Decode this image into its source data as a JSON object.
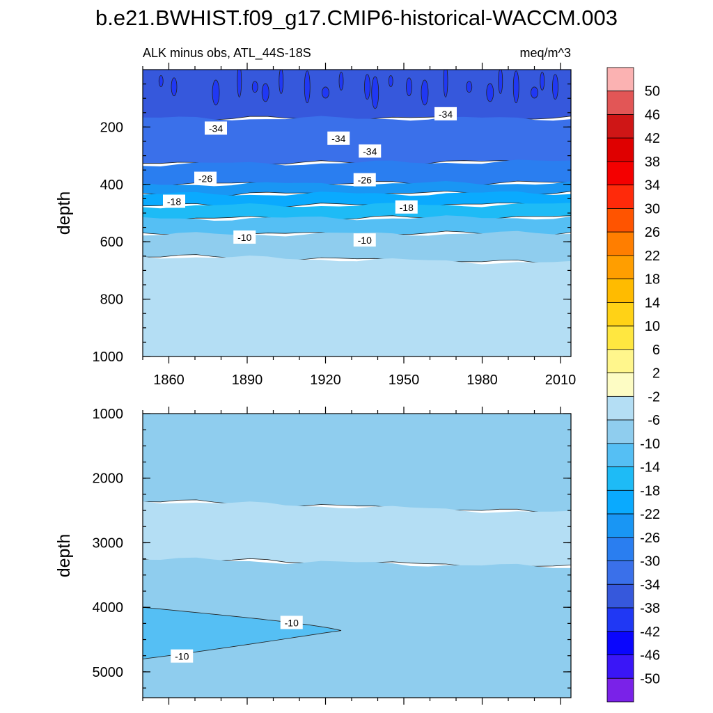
{
  "figure_title": "b.e21.BWHIST.f09_g17.CMIP6-historical-WACCM.003",
  "colorbar": {
    "levels": [
      "50",
      "46",
      "42",
      "38",
      "34",
      "30",
      "26",
      "22",
      "18",
      "14",
      "10",
      "6",
      "2",
      "-2",
      "-6",
      "-10",
      "-14",
      "-18",
      "-22",
      "-26",
      "-30",
      "-34",
      "-38",
      "-42",
      "-46",
      "-50"
    ],
    "colors": [
      "#fbb2b2",
      "#e25656",
      "#cf1616",
      "#df0000",
      "#f40000",
      "#ff2a0a",
      "#ff5400",
      "#ff7e00",
      "#ff9e00",
      "#ffbb00",
      "#ffd216",
      "#ffe740",
      "#fff68c",
      "#fdfcc4",
      "#b4def4",
      "#8fcdee",
      "#55bff4",
      "#1ebbf6",
      "#0aaafe",
      "#1996f4",
      "#2a7ef0",
      "#3a70ea",
      "#3658dc",
      "#2038f4",
      "#0a06fd",
      "#3a16f7",
      "#7a22e8"
    ]
  },
  "chart_data": [
    {
      "type": "contour",
      "panel": "upper",
      "left_title": "ALK minus obs, ATL_44S-18S",
      "right_title": "meq/m^3",
      "xlabel": "",
      "ylabel": "depth",
      "xlim": [
        1850,
        2014
      ],
      "ylim": [
        1000,
        0
      ],
      "x_ticks": [
        "1860",
        "1890",
        "1920",
        "1950",
        "1980",
        "2010"
      ],
      "x_tick_values": [
        1860,
        1890,
        1920,
        1950,
        1980,
        2010
      ],
      "y_ticks": [
        "200",
        "400",
        "600",
        "800",
        "1000"
      ],
      "y_tick_values": [
        200,
        400,
        600,
        800,
        1000
      ],
      "bands": [
        {
          "value_range": [
            -38,
            -34
          ],
          "depth_top": [
            0,
            0
          ],
          "depth_bottom": [
            170,
            170
          ]
        },
        {
          "value_range": [
            -34,
            -30
          ],
          "depth_top": [
            170,
            170
          ],
          "depth_bottom": [
            330,
            320
          ]
        },
        {
          "value_range": [
            -30,
            -26
          ],
          "depth_top": [
            330,
            320
          ],
          "depth_bottom": [
            400,
            395
          ]
        },
        {
          "value_range": [
            -26,
            -22
          ],
          "depth_top": [
            400,
            395
          ],
          "depth_bottom": [
            435,
            430
          ]
        },
        {
          "value_range": [
            -22,
            -18
          ],
          "depth_top": [
            435,
            430
          ],
          "depth_bottom": [
            475,
            470
          ]
        },
        {
          "value_range": [
            -18,
            -14
          ],
          "depth_top": [
            475,
            470
          ],
          "depth_bottom": [
            520,
            515
          ]
        },
        {
          "value_range": [
            -14,
            -10
          ],
          "depth_top": [
            520,
            515
          ],
          "depth_bottom": [
            575,
            570
          ]
        },
        {
          "value_range": [
            -10,
            -6
          ],
          "depth_top": [
            575,
            570
          ],
          "depth_bottom": [
            650,
            675
          ]
        },
        {
          "value_range": [
            -6,
            -2
          ],
          "depth_top": [
            650,
            675
          ],
          "depth_bottom": [
            1000,
            1000
          ]
        }
      ],
      "contour_labels": [
        {
          "text": "-34",
          "x": 1878,
          "depth": 205
        },
        {
          "text": "-34",
          "x": 1925,
          "depth": 240
        },
        {
          "text": "-34",
          "x": 1937,
          "depth": 285
        },
        {
          "text": "-34",
          "x": 1966,
          "depth": 155
        },
        {
          "text": "-26",
          "x": 1874,
          "depth": 380
        },
        {
          "text": "-26",
          "x": 1935,
          "depth": 385
        },
        {
          "text": "-18",
          "x": 1862,
          "depth": 460
        },
        {
          "text": "-18",
          "x": 1951,
          "depth": 480
        },
        {
          "text": "-10",
          "x": 1889,
          "depth": 585
        },
        {
          "text": "-10",
          "x": 1935,
          "depth": 595
        }
      ]
    },
    {
      "type": "contour",
      "panel": "lower",
      "xlabel": "",
      "ylabel": "depth",
      "xlim": [
        1850,
        2014
      ],
      "ylim": [
        5400,
        1000
      ],
      "y_ticks": [
        "1000",
        "2000",
        "3000",
        "4000",
        "5000"
      ],
      "y_tick_values": [
        1000,
        2000,
        3000,
        4000,
        5000
      ],
      "bands": [
        {
          "value_range": [
            -10,
            -6
          ],
          "depth_top": [
            1000,
            1000
          ],
          "depth_bottom": [
            2350,
            2540
          ]
        },
        {
          "value_range": [
            -6,
            -2
          ],
          "depth_top": [
            2350,
            2540
          ],
          "depth_bottom": [
            3250,
            3380
          ]
        },
        {
          "value_range": [
            -10,
            -6
          ],
          "depth_top": [
            3250,
            3380
          ],
          "depth_bottom": [
            5400,
            5400
          ]
        }
      ],
      "tongue": {
        "value_range": [
          -14,
          -10
        ],
        "x_start": 1850,
        "x_tip": 1926,
        "depth_top": [
          4000,
          4250
        ],
        "depth_bottom": [
          4800,
          4450
        ],
        "depth_tip": 4360
      },
      "contour_labels": [
        {
          "text": "-10",
          "x": 1907,
          "depth": 4240
        },
        {
          "text": "-10",
          "x": 1865,
          "depth": 4760
        }
      ]
    }
  ]
}
